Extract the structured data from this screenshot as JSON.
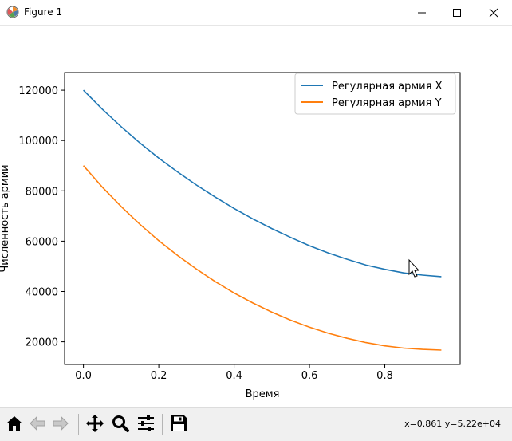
{
  "window": {
    "title": "Figure 1",
    "app_icon": "matplotlib-icon",
    "controls": [
      "minimize-icon",
      "maximize-icon",
      "close-icon"
    ]
  },
  "chart_data": {
    "type": "line",
    "xlabel": "Время",
    "ylabel": "Численность армии",
    "xlim": [
      -0.05,
      1.0
    ],
    "ylim": [
      11000,
      127000
    ],
    "xticks": [
      "0.0",
      "0.2",
      "0.4",
      "0.6",
      "0.8"
    ],
    "xtick_values": [
      0.0,
      0.2,
      0.4,
      0.6,
      0.8
    ],
    "yticks": [
      "20000",
      "40000",
      "60000",
      "80000",
      "100000",
      "120000"
    ],
    "ytick_values": [
      20000,
      40000,
      60000,
      80000,
      100000,
      120000
    ],
    "grid": false,
    "legend_position": "top-right",
    "series": [
      {
        "name": "Регулярная армия X",
        "color": "#1f77b4",
        "x": [
          0.0,
          0.05,
          0.1,
          0.15,
          0.2,
          0.25,
          0.3,
          0.35,
          0.4,
          0.45,
          0.5,
          0.55,
          0.6,
          0.65,
          0.7,
          0.75,
          0.8,
          0.85,
          0.9,
          0.95
        ],
        "values": [
          120000,
          112500,
          105500,
          99000,
          93000,
          87500,
          82300,
          77500,
          73000,
          68800,
          65000,
          61500,
          58200,
          55300,
          52800,
          50500,
          48800,
          47400,
          46500,
          45900
        ]
      },
      {
        "name": "Регулярная армия Y",
        "color": "#ff7f0e",
        "x": [
          0.0,
          0.05,
          0.1,
          0.15,
          0.2,
          0.25,
          0.3,
          0.35,
          0.4,
          0.45,
          0.5,
          0.55,
          0.6,
          0.65,
          0.7,
          0.75,
          0.8,
          0.85,
          0.9,
          0.95
        ],
        "values": [
          90000,
          81500,
          73800,
          66700,
          60200,
          54300,
          48900,
          43900,
          39400,
          35400,
          31800,
          28600,
          25800,
          23400,
          21400,
          19700,
          18400,
          17500,
          17000,
          16700
        ]
      }
    ]
  },
  "toolbar": {
    "buttons": [
      {
        "icon": "home-icon",
        "name": "home-button"
      },
      {
        "icon": "back-arrow-icon",
        "name": "back-button"
      },
      {
        "icon": "forward-arrow-icon",
        "name": "forward-button"
      },
      {
        "icon": "pan-icon",
        "name": "pan-button"
      },
      {
        "icon": "zoom-icon",
        "name": "zoom-button"
      },
      {
        "icon": "configure-subplots-icon",
        "name": "configure-button"
      },
      {
        "icon": "save-icon",
        "name": "save-button"
      }
    ],
    "coords": "x=0.861 y=5.22e+04"
  },
  "cursor": "mouse-pointer-icon"
}
